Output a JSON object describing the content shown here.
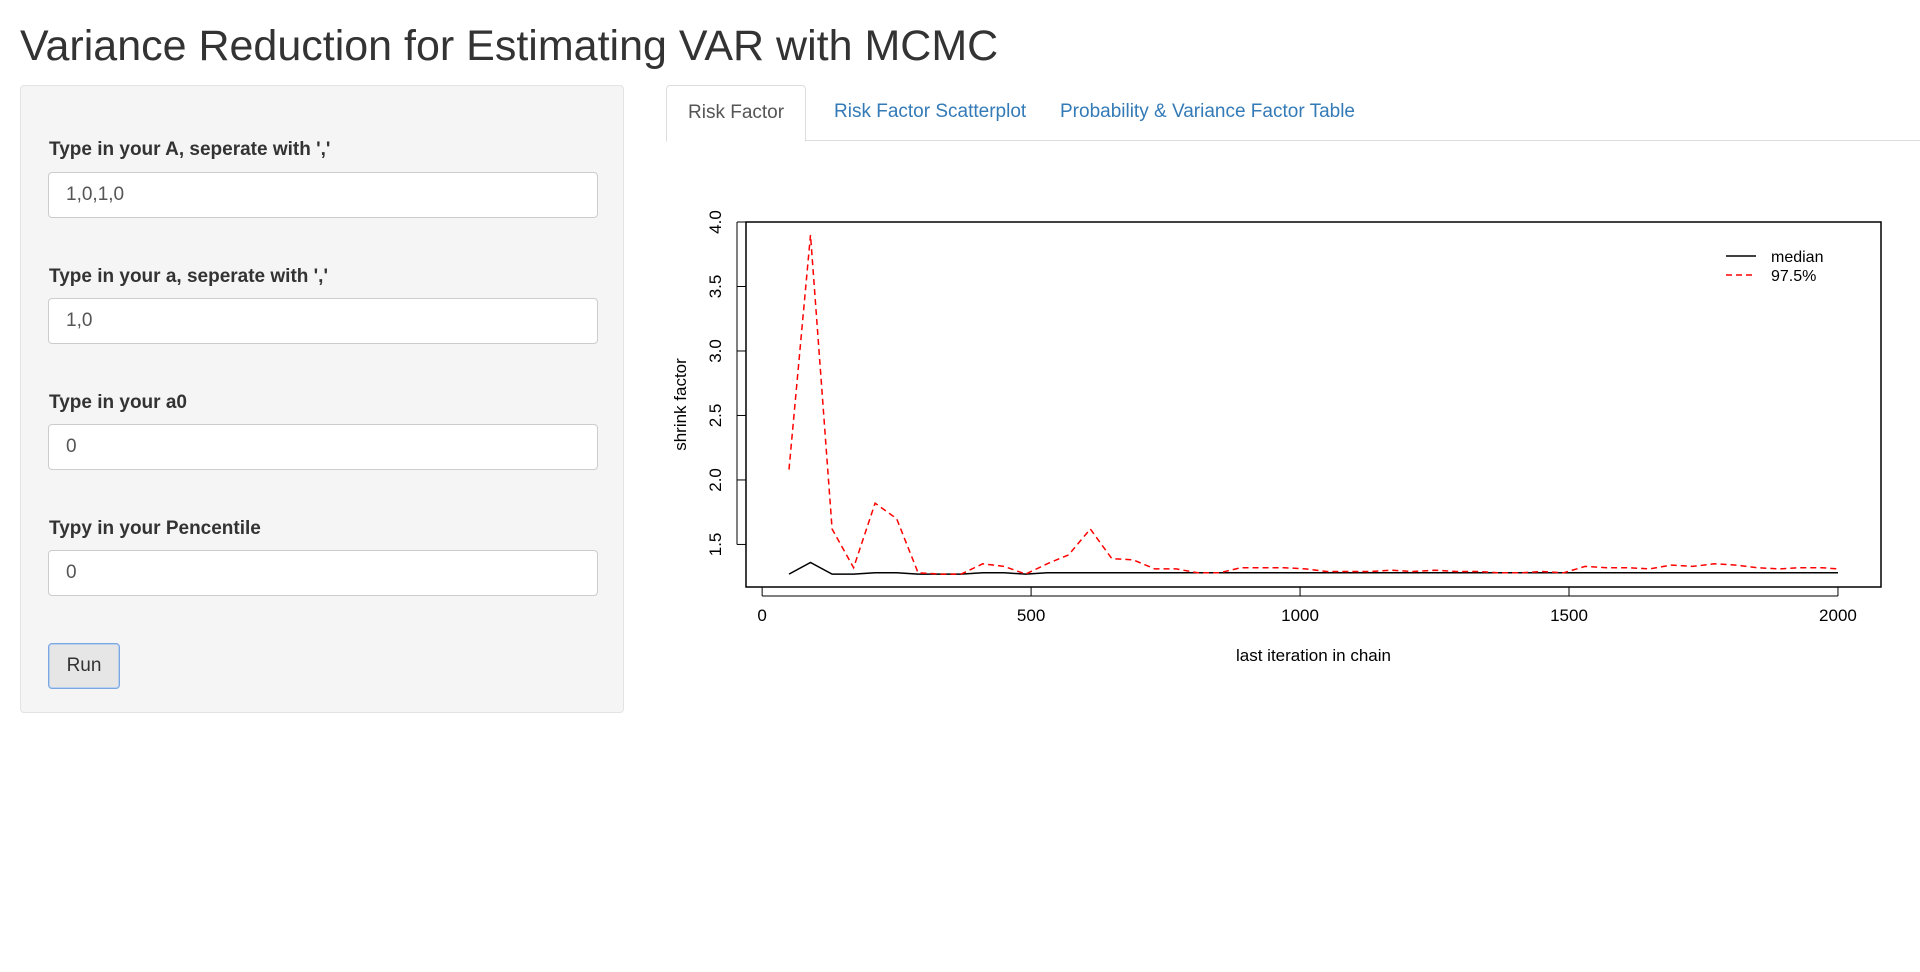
{
  "app": {
    "title": "Variance Reduction for Estimating VAR with MCMC"
  },
  "sidebar": {
    "fields": [
      {
        "label": "Type in your A, seperate with ','",
        "value": "1,0,1,0"
      },
      {
        "label": "Type in your a, seperate with ','",
        "value": "1,0"
      },
      {
        "label": "Type in your a0",
        "value": "0"
      },
      {
        "label": "Typy in your Pencentile",
        "value": "0"
      }
    ],
    "run_label": "Run"
  },
  "tabs": [
    {
      "label": "Risk Factor",
      "active": true
    },
    {
      "label": "Risk Factor Scatterplot",
      "active": false
    },
    {
      "label": "Probability & Variance Factor Table",
      "active": false
    }
  ],
  "colors": {
    "link": "#337ab7",
    "median": "#000000",
    "upper": "#ff0000"
  },
  "chart_data": {
    "type": "line",
    "title": "",
    "xlabel": "last iteration in chain",
    "ylabel": "shrink factor",
    "xlim": [
      -30,
      2080
    ],
    "ylim": [
      1.17,
      4.0
    ],
    "xticks": [
      0,
      500,
      1000,
      1500,
      2000
    ],
    "yticks": [
      1.5,
      2.0,
      2.5,
      3.0,
      3.5,
      4.0
    ],
    "ytick_labels": [
      "1.5",
      "2.0",
      "2.5",
      "3.0",
      "3.5",
      "4.0"
    ],
    "legend_position": "top-right",
    "grid": false,
    "series": [
      {
        "name": "median",
        "style": "solid",
        "x": [
          50,
          90,
          130,
          170,
          210,
          250,
          290,
          330,
          370,
          410,
          450,
          490,
          530,
          570,
          610,
          650,
          690,
          730,
          770,
          810,
          850,
          890,
          930,
          970,
          1010,
          1050,
          1090,
          1130,
          1170,
          1210,
          1250,
          1290,
          1330,
          1370,
          1410,
          1450,
          1490,
          1530,
          1570,
          1610,
          1650,
          1690,
          1730,
          1770,
          1810,
          1850,
          1890,
          1930,
          1970,
          2000
        ],
        "y": [
          1.27,
          1.36,
          1.27,
          1.27,
          1.28,
          1.28,
          1.27,
          1.27,
          1.27,
          1.28,
          1.28,
          1.27,
          1.28,
          1.28,
          1.28,
          1.28,
          1.28,
          1.28,
          1.28,
          1.28,
          1.28,
          1.28,
          1.28,
          1.28,
          1.28,
          1.28,
          1.28,
          1.28,
          1.28,
          1.28,
          1.28,
          1.28,
          1.28,
          1.28,
          1.28,
          1.28,
          1.28,
          1.28,
          1.28,
          1.28,
          1.28,
          1.28,
          1.28,
          1.28,
          1.28,
          1.28,
          1.28,
          1.28,
          1.28,
          1.28
        ]
      },
      {
        "name": "97.5%",
        "style": "dashed",
        "x": [
          50,
          90,
          130,
          170,
          210,
          250,
          290,
          330,
          370,
          410,
          450,
          490,
          530,
          570,
          610,
          650,
          690,
          730,
          770,
          810,
          850,
          890,
          930,
          970,
          1010,
          1050,
          1090,
          1130,
          1170,
          1210,
          1250,
          1290,
          1330,
          1370,
          1410,
          1450,
          1490,
          1530,
          1570,
          1610,
          1650,
          1690,
          1730,
          1770,
          1810,
          1850,
          1890,
          1930,
          1970,
          2000
        ],
        "y": [
          2.08,
          3.9,
          1.62,
          1.32,
          1.82,
          1.7,
          1.28,
          1.27,
          1.27,
          1.35,
          1.33,
          1.27,
          1.35,
          1.42,
          1.62,
          1.39,
          1.38,
          1.31,
          1.31,
          1.28,
          1.28,
          1.32,
          1.32,
          1.32,
          1.31,
          1.29,
          1.29,
          1.29,
          1.3,
          1.29,
          1.3,
          1.29,
          1.29,
          1.28,
          1.28,
          1.29,
          1.28,
          1.33,
          1.32,
          1.32,
          1.31,
          1.34,
          1.33,
          1.35,
          1.34,
          1.32,
          1.31,
          1.32,
          1.32,
          1.31
        ]
      }
    ]
  }
}
